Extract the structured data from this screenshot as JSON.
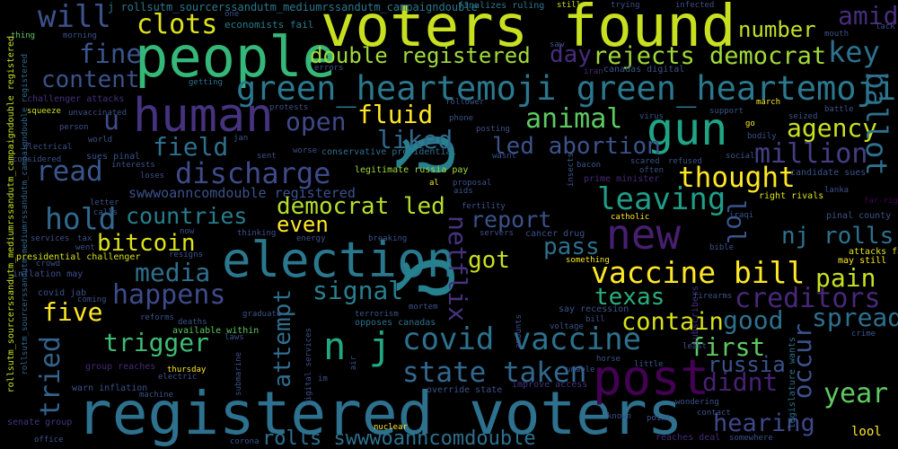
{
  "words": [
    {
      "id": "voters_found",
      "text": "voters found",
      "color": "#c8e020"
    },
    {
      "id": "registered_voters",
      "text": "registered voters",
      "color": "#2d718e"
    },
    {
      "id": "people",
      "text": "people",
      "color": "#35b779"
    },
    {
      "id": "election",
      "text": "election",
      "color": "#2a788e"
    },
    {
      "id": "post",
      "text": "post",
      "color": "#440154"
    },
    {
      "id": "human",
      "text": "human",
      "color": "#46327e"
    },
    {
      "id": "gun",
      "text": "gun",
      "color": "#20a486"
    },
    {
      "id": "new",
      "text": "new",
      "color": "#481f70"
    },
    {
      "id": "n_j",
      "text": "n j",
      "color": "#22a884"
    },
    {
      "id": "ld_big",
      "text": "ლ",
      "color": "#27808e"
    },
    {
      "id": "ld_big2",
      "text": "ლ",
      "color": "#27808e"
    },
    {
      "id": "green_hearts",
      "text": "green_heartemoji green_heartemoji",
      "color": "#2a788e"
    },
    {
      "id": "covid_vaccine",
      "text": "covid vaccine",
      "color": "#2c728e"
    },
    {
      "id": "vaccine_bill",
      "text": "vaccine bill",
      "color": "#fde725"
    },
    {
      "id": "discharge",
      "text": "discharge",
      "color": "#3e4a89"
    },
    {
      "id": "state_taken",
      "text": "state taken",
      "color": "#31688e"
    },
    {
      "id": "will",
      "text": "will",
      "color": "#3b528b"
    },
    {
      "id": "clots",
      "text": "clots",
      "color": "#dde318"
    },
    {
      "id": "double_registered",
      "text": "double registered",
      "color": "#a0da39"
    },
    {
      "id": "rejects_democrat",
      "text": "rejects democrat",
      "color": "#a0da39"
    },
    {
      "id": "key",
      "text": "key",
      "color": "#2c728e"
    },
    {
      "id": "number",
      "text": "number",
      "color": "#c2df23"
    },
    {
      "id": "amid",
      "text": "amid",
      "color": "#472d7b"
    },
    {
      "id": "fine",
      "text": "fine",
      "color": "#39558c"
    },
    {
      "id": "content",
      "text": "content",
      "color": "#3b528b"
    },
    {
      "id": "day",
      "text": "day",
      "color": "#472c7a"
    },
    {
      "id": "open",
      "text": "open",
      "color": "#3e4989"
    },
    {
      "id": "fluid",
      "text": "fluid",
      "color": "#fde725"
    },
    {
      "id": "animal",
      "text": "animal",
      "color": "#5ec962"
    },
    {
      "id": "u",
      "text": "u",
      "color": "#3e4a89"
    },
    {
      "id": "liked",
      "text": "liked",
      "color": "#31688e"
    },
    {
      "id": "led_abortion",
      "text": "led abortion",
      "color": "#3b528b"
    },
    {
      "id": "field",
      "text": "field",
      "color": "#2d708e"
    },
    {
      "id": "read",
      "text": "read",
      "color": "#39568c"
    },
    {
      "id": "agency",
      "text": "agency",
      "color": "#c8e020"
    },
    {
      "id": "million",
      "text": "million",
      "color": "#433e85"
    },
    {
      "id": "ballot",
      "text": "ballot",
      "color": "#2d708e"
    },
    {
      "id": "thought",
      "text": "thought",
      "color": "#fde725"
    },
    {
      "id": "leaving",
      "text": "leaving",
      "color": "#1f9e89"
    },
    {
      "id": "hold",
      "text": "hold",
      "color": "#31688e"
    },
    {
      "id": "countries",
      "text": "countries",
      "color": "#287d8e"
    },
    {
      "id": "swwwoann",
      "text": "swwwoanncomdouble registered",
      "color": "#3b528b"
    },
    {
      "id": "democrat_led",
      "text": "democrat led",
      "color": "#b5de2b"
    },
    {
      "id": "even",
      "text": "even",
      "color": "#fde725"
    },
    {
      "id": "report",
      "text": "report",
      "color": "#3b528b"
    },
    {
      "id": "netflix",
      "text": "netflix",
      "color": "#46337e"
    },
    {
      "id": "lol",
      "text": "lol",
      "color": "#39558c"
    },
    {
      "id": "nj_rolls",
      "text": "nj rolls",
      "color": "#2c728e"
    },
    {
      "id": "bitcoin",
      "text": "bitcoin",
      "color": "#dde318"
    },
    {
      "id": "media",
      "text": "media",
      "color": "#2d708e"
    },
    {
      "id": "happens",
      "text": "happens",
      "color": "#3e4a89"
    },
    {
      "id": "got",
      "text": "got",
      "color": "#c8e020"
    },
    {
      "id": "pass",
      "text": "pass",
      "color": "#2d708e"
    },
    {
      "id": "texas",
      "text": "texas",
      "color": "#29af7f"
    },
    {
      "id": "pain",
      "text": "pain",
      "color": "#c8e020"
    },
    {
      "id": "creditors",
      "text": "creditors",
      "color": "#482878"
    },
    {
      "id": "signal",
      "text": "signal",
      "color": "#277f8e"
    },
    {
      "id": "five",
      "text": "five",
      "color": "#fde725"
    },
    {
      "id": "contain",
      "text": "contain",
      "color": "#d8e219"
    },
    {
      "id": "good",
      "text": "good",
      "color": "#2d718e"
    },
    {
      "id": "spread",
      "text": "spread",
      "color": "#2d708e"
    },
    {
      "id": "trigger",
      "text": "trigger",
      "color": "#3dbc74"
    },
    {
      "id": "attempt",
      "text": "attempt",
      "color": "#2e6e8e"
    },
    {
      "id": "first",
      "text": "first",
      "color": "#5ec962"
    },
    {
      "id": "occur",
      "text": "occur",
      "color": "#3b528b"
    },
    {
      "id": "tried",
      "text": "tried",
      "color": "#33638d"
    },
    {
      "id": "russia",
      "text": "russia",
      "color": "#3b528b"
    },
    {
      "id": "didnt",
      "text": "didnt",
      "color": "#482173"
    },
    {
      "id": "year",
      "text": "year",
      "color": "#5ec962"
    },
    {
      "id": "hearing",
      "text": "hearing",
      "color": "#3f4788"
    },
    {
      "id": "rolls_sww",
      "text": "rolls swwwoanncomdouble",
      "color": "#2d708e"
    },
    {
      "id": "rollsutm_top",
      "text": "j rollsutm_sourcerssandutm_mediumrssandutm_campaigndouble",
      "color": "#2a788e"
    },
    {
      "id": "rollsutm_left",
      "text": "rollsutm_sourcerssandutm_mediumrssandutm_campaigndouble registered",
      "color": "#c8e020"
    },
    {
      "id": "rollsutm_left2",
      "text": "rollsutm_sourcerssandutm_mediumrssandutm_campaigndouble registered",
      "color": "#31688e"
    },
    {
      "id": "economists_fail",
      "text": "economists fail",
      "color": "#287d8e"
    },
    {
      "id": "finalizes_ruling",
      "text": "finalizes ruling",
      "color": "#2a788e"
    },
    {
      "id": "presidential_challenger",
      "text": "presidential challenger",
      "color": "#d8e219"
    },
    {
      "id": "challenger_attacks",
      "text": "challenger attacks",
      "color": "#46327e"
    },
    {
      "id": "conservative_presidential",
      "text": "conservative presidential",
      "color": "#2d708e"
    },
    {
      "id": "legitimate_russia",
      "text": "legitimate russia pay",
      "color": "#a0da39"
    },
    {
      "id": "candidate_sues",
      "text": "candidate sues",
      "color": "#3b528b"
    },
    {
      "id": "right_rivals",
      "text": "right rivals",
      "color": "#dde318"
    },
    {
      "id": "prime_minister",
      "text": "prime minister",
      "color": "#482878"
    },
    {
      "id": "canadas_digital",
      "text": "canadas digital",
      "color": "#3b528b"
    },
    {
      "id": "pinal_county",
      "text": "pinal county",
      "color": "#3b528b"
    },
    {
      "id": "attacks_far",
      "text": "attacks far",
      "color": "#dde318"
    },
    {
      "id": "may_still",
      "text": "may still",
      "color": "#fde725"
    },
    {
      "id": "far_right",
      "text": "far-right",
      "color": "#440154"
    },
    {
      "id": "inflation_may",
      "text": "inflation may",
      "color": "#3b528b"
    },
    {
      "id": "covid_jab",
      "text": "covid jab",
      "color": "#3b528b"
    },
    {
      "id": "available_within",
      "text": "available within",
      "color": "#5ec962"
    },
    {
      "id": "say_recession",
      "text": "say recession",
      "color": "#3b528b"
    },
    {
      "id": "opposes_canadas",
      "text": "opposes canadas",
      "color": "#2d708e"
    },
    {
      "id": "group_reaches",
      "text": "group reaches",
      "color": "#482878"
    },
    {
      "id": "warn_inflation",
      "text": "warn inflation",
      "color": "#3b528b"
    },
    {
      "id": "override_state",
      "text": "override state",
      "color": "#3b528b"
    },
    {
      "id": "improve_access",
      "text": "improve access",
      "color": "#46327e"
    },
    {
      "id": "reaches_deal",
      "text": "reaches deal",
      "color": "#482878"
    },
    {
      "id": "senate_group",
      "text": "senate group",
      "color": "#46327e"
    },
    {
      "id": "sues_pinal",
      "text": "sues pinal",
      "color": "#3b528b"
    },
    {
      "id": "cancer_drug",
      "text": "cancer drug",
      "color": "#3b528b"
    },
    {
      "id": "digital_services",
      "text": "digital services",
      "color": "#3b528b"
    },
    {
      "id": "legislature_wants",
      "text": "legislature wants",
      "color": "#2d708e"
    },
    {
      "id": "subscribers",
      "text": "subscribers",
      "color": "#46327e"
    },
    {
      "id": "thing",
      "text": "thing",
      "color": "#5ec962"
    },
    {
      "id": "morning",
      "text": "morning",
      "color": "#3b528b"
    },
    {
      "id": "one",
      "text": "one",
      "color": "#3b528b"
    },
    {
      "id": "trying",
      "text": "trying",
      "color": "#3b528b"
    },
    {
      "id": "infected",
      "text": "infected",
      "color": "#3b528b"
    },
    {
      "id": "still",
      "text": "still",
      "color": "#c8e020"
    },
    {
      "id": "saw",
      "text": "saw",
      "color": "#3b528b"
    },
    {
      "id": "iran",
      "text": "iran",
      "color": "#482878"
    },
    {
      "id": "mouth",
      "text": "mouth",
      "color": "#3b528b"
    },
    {
      "id": "lack",
      "text": "lack",
      "color": "#3b528b"
    },
    {
      "id": "getting",
      "text": "getting",
      "color": "#2d708e"
    },
    {
      "id": "errors",
      "text": "errors",
      "color": "#3b528b"
    },
    {
      "id": "squeeze",
      "text": "squeeze",
      "color": "#c8e020"
    },
    {
      "id": "unvaccinated",
      "text": "unvaccinated",
      "color": "#3b528b"
    },
    {
      "id": "protests",
      "text": "protests",
      "color": "#3b528b"
    },
    {
      "id": "follower",
      "text": "follower",
      "color": "#3b528b"
    },
    {
      "id": "phone",
      "text": "phone",
      "color": "#3b528b"
    },
    {
      "id": "posting",
      "text": "posting",
      "color": "#3b528b"
    },
    {
      "id": "virus",
      "text": "virus",
      "color": "#3b528b"
    },
    {
      "id": "support",
      "text": "support",
      "color": "#3b528b"
    },
    {
      "id": "march",
      "text": "march",
      "color": "#fde725"
    },
    {
      "id": "battle",
      "text": "battle",
      "color": "#3b528b"
    },
    {
      "id": "seized",
      "text": "seized",
      "color": "#3b528b"
    },
    {
      "id": "person",
      "text": "person",
      "color": "#3b528b"
    },
    {
      "id": "electrical",
      "text": "electrical",
      "color": "#3b528b"
    },
    {
      "id": "considered",
      "text": "considered",
      "color": "#3b528b"
    },
    {
      "id": "world",
      "text": "world",
      "color": "#3b528b"
    },
    {
      "id": "jan",
      "text": "jan",
      "color": "#3b528b"
    },
    {
      "id": "worse",
      "text": "worse",
      "color": "#3b528b"
    },
    {
      "id": "sent",
      "text": "sent",
      "color": "#3b528b"
    },
    {
      "id": "wasnt",
      "text": "wasnt",
      "color": "#3b528b"
    },
    {
      "id": "bacon",
      "text": "bacon",
      "color": "#3b528b"
    },
    {
      "id": "scared",
      "text": "scared",
      "color": "#3b528b"
    },
    {
      "id": "refused",
      "text": "refused",
      "color": "#3b528b"
    },
    {
      "id": "often",
      "text": "often",
      "color": "#3b528b"
    },
    {
      "id": "social",
      "text": "social",
      "color": "#3b528b"
    },
    {
      "id": "bodily",
      "text": "bodily",
      "color": "#3b528b"
    },
    {
      "id": "go",
      "text": "go",
      "color": "#fde725"
    },
    {
      "id": "interests",
      "text": "interests",
      "color": "#3b528b"
    },
    {
      "id": "loses",
      "text": "loses",
      "color": "#3b528b"
    },
    {
      "id": "proposal",
      "text": "proposal",
      "color": "#3b528b"
    },
    {
      "id": "aids",
      "text": "aids",
      "color": "#3b528b"
    },
    {
      "id": "al",
      "text": "al",
      "color": "#fde725"
    },
    {
      "id": "insects",
      "text": "insects",
      "color": "#3b528b"
    },
    {
      "id": "letter",
      "text": "letter",
      "color": "#3b528b"
    },
    {
      "id": "calls",
      "text": "calls",
      "color": "#3b528b"
    },
    {
      "id": "catholic",
      "text": "catholic",
      "color": "#fde725"
    },
    {
      "id": "iraqi",
      "text": "iraqi",
      "color": "#3b528b"
    },
    {
      "id": "lanka",
      "text": "lanka",
      "color": "#3b528b"
    },
    {
      "id": "fertility",
      "text": "fertility",
      "color": "#3b528b"
    },
    {
      "id": "services",
      "text": "services",
      "color": "#3b528b"
    },
    {
      "id": "tax",
      "text": "tax",
      "color": "#3b528b"
    },
    {
      "id": "went",
      "text": "went",
      "color": "#3b528b"
    },
    {
      "id": "crowd",
      "text": "crowd",
      "color": "#3b528b"
    },
    {
      "id": "thinking",
      "text": "thinking",
      "color": "#3b528b"
    },
    {
      "id": "energy",
      "text": "energy",
      "color": "#3b528b"
    },
    {
      "id": "breaking",
      "text": "breaking",
      "color": "#3b528b"
    },
    {
      "id": "servers",
      "text": "servers",
      "color": "#3b528b"
    },
    {
      "id": "something",
      "text": "something",
      "color": "#fde725"
    },
    {
      "id": "bible",
      "text": "bible",
      "color": "#3b528b"
    },
    {
      "id": "now",
      "text": "now",
      "color": "#3b528b"
    },
    {
      "id": "resigns",
      "text": "resigns",
      "color": "#3b528b"
    },
    {
      "id": "reforms",
      "text": "reforms",
      "color": "#3b528b"
    },
    {
      "id": "deaths",
      "text": "deaths",
      "color": "#3b528b"
    },
    {
      "id": "coming",
      "text": "coming",
      "color": "#3b528b"
    },
    {
      "id": "graduate",
      "text": "graduate",
      "color": "#3b528b"
    },
    {
      "id": "terrorism",
      "text": "terrorism",
      "color": "#3b528b"
    },
    {
      "id": "mortem",
      "text": "mortem",
      "color": "#3b528b"
    },
    {
      "id": "bill_small",
      "text": "bill",
      "color": "#3b528b"
    },
    {
      "id": "firearms",
      "text": "firearms",
      "color": "#3b528b"
    },
    {
      "id": "laws",
      "text": "laws",
      "color": "#3b528b"
    },
    {
      "id": "voltage",
      "text": "voltage",
      "color": "#3b528b"
    },
    {
      "id": "amounts",
      "text": "amounts",
      "color": "#3b528b"
    },
    {
      "id": "least",
      "text": "least",
      "color": "#3b528b"
    },
    {
      "id": "crime",
      "text": "crime",
      "color": "#3b528b"
    },
    {
      "id": "thursday",
      "text": "thursday",
      "color": "#fde725"
    },
    {
      "id": "electric",
      "text": "electric",
      "color": "#3b528b"
    },
    {
      "id": "submarine",
      "text": "submarine",
      "color": "#3b528b"
    },
    {
      "id": "im",
      "text": "im",
      "color": "#3b528b"
    },
    {
      "id": "air",
      "text": "air",
      "color": "#3b528b"
    },
    {
      "id": "unable",
      "text": "unable",
      "color": "#3b528b"
    },
    {
      "id": "horse",
      "text": "horse",
      "color": "#3b528b"
    },
    {
      "id": "little",
      "text": "little",
      "color": "#3b528b"
    },
    {
      "id": "wondering",
      "text": "wondering",
      "color": "#3b528b"
    },
    {
      "id": "contact",
      "text": "contact",
      "color": "#3b528b"
    },
    {
      "id": "point",
      "text": "point",
      "color": "#3b528b"
    },
    {
      "id": "known",
      "text": "known",
      "color": "#3b528b"
    },
    {
      "id": "somewhere",
      "text": "somewhere",
      "color": "#3b528b"
    },
    {
      "id": "lool",
      "text": "lool",
      "color": "#fde725"
    },
    {
      "id": "office",
      "text": "office",
      "color": "#3b528b"
    },
    {
      "id": "corona",
      "text": "corona",
      "color": "#3b528b"
    },
    {
      "id": "nuclear",
      "text": "nuclear",
      "color": "#fde725"
    },
    {
      "id": "machine",
      "text": "machine",
      "color": "#3b528b"
    }
  ]
}
